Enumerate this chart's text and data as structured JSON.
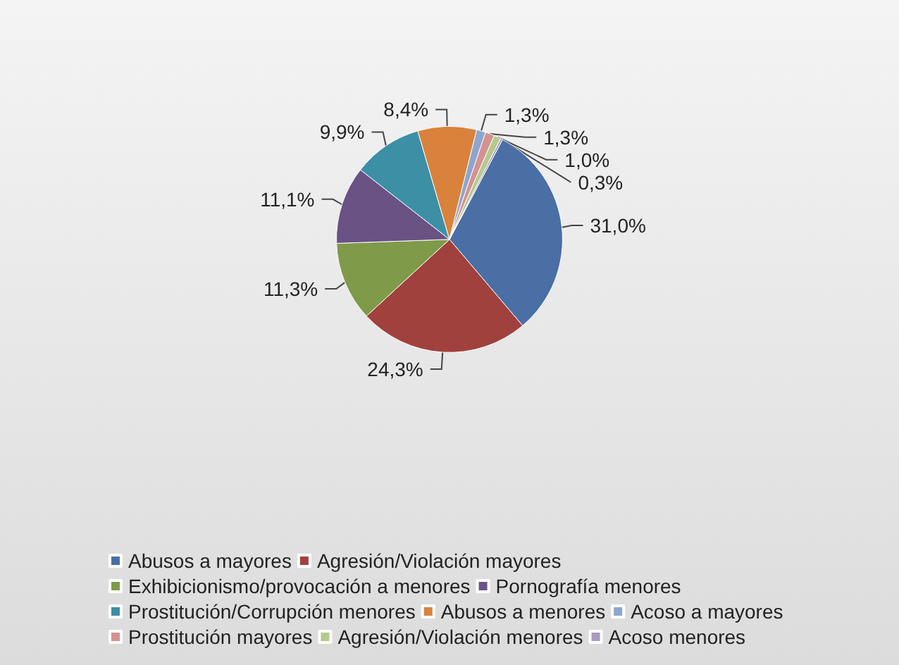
{
  "chart_data": {
    "type": "pie",
    "categories": [
      "Abusos a mayores",
      "Agresión/Violación mayores",
      "Exhibicionismo/provocación a menores",
      "Pornografía menores",
      "Prostitución/Corrupción menores",
      "Abusos a menores",
      "Acoso a mayores",
      "Prostitución mayores",
      "Agresión/Violación menores",
      "Acoso menores"
    ],
    "values": [
      31.0,
      24.3,
      11.3,
      11.1,
      9.9,
      8.4,
      1.3,
      1.3,
      1.0,
      0.3
    ],
    "value_labels": [
      "31,0%",
      "24,3%",
      "11,3%",
      "11,1%",
      "9,9%",
      "8,4%",
      "1,3%",
      "1,3%",
      "1,0%",
      "0,3%"
    ],
    "colors": [
      "#4a6fa5",
      "#a0413d",
      "#7f9a48",
      "#6a5285",
      "#3d8fa6",
      "#d9823b",
      "#8ea6cf",
      "#d39391",
      "#b5c98e",
      "#a99bc0"
    ],
    "legend": "bottom"
  }
}
